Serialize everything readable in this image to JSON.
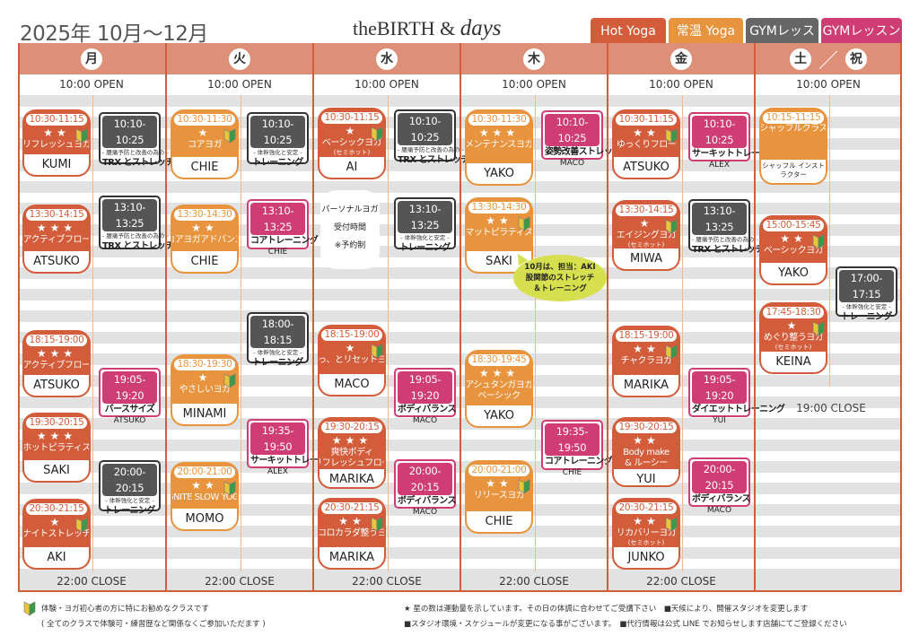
{
  "header": {
    "title": "2025年 10月〜12月",
    "logo_main": "theBIRTH",
    "logo_amp": "&",
    "logo_days": "days",
    "legend": [
      {
        "label": "Hot Yoga",
        "color": "#d35d3a"
      },
      {
        "label": "常温 Yoga",
        "color": "#e8943e"
      },
      {
        "label": "GYMレッスン",
        "color": "#666666"
      },
      {
        "label": "GYMレッスン",
        "color": "#d03c74"
      }
    ]
  },
  "colors": {
    "hot": "#d35d3a",
    "temp": "#e8943e",
    "gym_gray": "#555555",
    "gym_pink": "#d03c74",
    "border": "#d35d3a",
    "day_header": "#dd8f77"
  },
  "days": [
    {
      "label": "月",
      "open": "10:00 OPEN",
      "close": "22:00 CLOSE",
      "yoga": [
        {
          "time": "10:30-11:15",
          "stars": 2,
          "beginner": true,
          "name": "リフレッシュヨガ",
          "instructor": "KUMI",
          "type": "hot"
        },
        {
          "time": "13:30-14:15",
          "stars": 3,
          "name": "アクティブフロー",
          "instructor": "ATSUKO",
          "type": "hot"
        },
        {
          "time": "18:15-19:00",
          "stars": 3,
          "name": "アクティブフロー",
          "instructor": "ATSUKO",
          "type": "hot"
        },
        {
          "time": "19:30-20:15",
          "stars": 3,
          "name": "ホットピラティス",
          "instructor": "SAKI",
          "type": "hot"
        },
        {
          "time": "20:30-21:15",
          "stars": 1,
          "beginner": true,
          "name": "ナイトストレッチ",
          "instructor": "AKI",
          "type": "hot"
        }
      ],
      "gym": [
        {
          "time": "10:10-10:25",
          "color": "gray",
          "caption": "- 腰痛予防と改善の為の -",
          "title": "TRX とストレッチ"
        },
        {
          "time": "13:10-13:25",
          "color": "gray",
          "caption": "- 腰痛予防と改善の為の -",
          "title": "TRX とストレッチ"
        },
        {
          "time": "19:05-19:20",
          "color": "pink",
          "title": "バースサイズ",
          "instructor": "ATSUKO"
        },
        {
          "time": "20:00-20:15",
          "color": "gray",
          "caption": "- 体幹強化と安定 -",
          "title": "トレーニング"
        }
      ]
    },
    {
      "label": "火",
      "open": "10:00 OPEN",
      "close": "22:00 CLOSE",
      "yoga": [
        {
          "time": "10:30-11:30",
          "stars": 1,
          "beginner": true,
          "name": "コアヨガ",
          "instructor": "CHIE",
          "type": "temp"
        },
        {
          "time": "13:30-14:30",
          "stars": 2,
          "name": "コアヨガアドバンス",
          "instructor": "CHIE",
          "type": "temp"
        },
        {
          "time": "18:30-19:30",
          "stars": 1,
          "beginner": true,
          "name": "やさしいヨガ",
          "instructor": "MINAMI",
          "type": "temp"
        },
        {
          "time": "20:00-21:00",
          "stars": 2,
          "beginner": true,
          "name": "IGNITE SLOW YOGA",
          "instructor": "MOMO",
          "type": "temp"
        }
      ],
      "gym": [
        {
          "time": "10:10-10:25",
          "color": "gray",
          "caption": "- 体幹強化と安定 -",
          "title": "トレーニング"
        },
        {
          "time": "13:10-13:25",
          "color": "pink",
          "title": "コアトレーニング",
          "instructor": "CHIE"
        },
        {
          "time": "18:00-18:15",
          "color": "gray",
          "caption": "- 体幹強化と安定 -",
          "title": "トレーニング"
        },
        {
          "time": "19:35-19:50",
          "color": "pink",
          "title": "サーキットトレーニング",
          "instructor": "ALEX"
        }
      ]
    },
    {
      "label": "水",
      "open": "10:00 OPEN",
      "close": "22:00 CLOSE",
      "yoga": [
        {
          "time": "10:30-11:15",
          "stars": 1,
          "beginner": true,
          "name": "ベーシックヨガ",
          "sub": "(セミホット)",
          "instructor": "AI",
          "type": "hot"
        },
        {
          "time": "18:15-19:00",
          "stars": 1,
          "beginner": true,
          "name": "ほっ、とリセットヨガ",
          "instructor": "MACO",
          "type": "hot"
        },
        {
          "time": "19:30-20:15",
          "stars": 3,
          "name": "爽快ボディ",
          "name2": "リフレッシュフロー",
          "instructor": "MARIKA",
          "type": "hot"
        },
        {
          "time": "20:30-21:15",
          "stars": 2,
          "beginner": true,
          "name": "ココロカラダ整うヨガ",
          "instructor": "MARIKA",
          "type": "hot"
        }
      ],
      "personal": [
        "パーソナルヨガ",
        "受付時間",
        "※予約制"
      ],
      "gym": [
        {
          "time": "10:10-10:25",
          "color": "gray",
          "caption": "- 腰痛予防と改善の為の -",
          "title": "TRX とストレッチ"
        },
        {
          "time": "13:10-13:25",
          "color": "gray",
          "caption": "- 体幹強化と安定 -",
          "title": "トレーニング"
        },
        {
          "time": "19:05-19:20",
          "color": "pink",
          "title": "ボディバランス",
          "instructor": "MACO"
        },
        {
          "time": "20:00-20:15",
          "color": "pink",
          "title": "ボディバランス",
          "instructor": "MACO"
        }
      ]
    },
    {
      "label": "木",
      "open": "10:00 OPEN",
      "close": "22:00 CLOSE",
      "yoga": [
        {
          "time": "10:30-11:30",
          "stars": 3,
          "name": "メンテナンスヨガ",
          "instructor": "YAKO",
          "type": "temp"
        },
        {
          "time": "13:30-14:30",
          "stars": 2,
          "beginner": true,
          "name": "マットピラティス",
          "instructor": "SAKI",
          "type": "temp"
        },
        {
          "time": "18:30-19:45",
          "stars": 3,
          "name": "アシュタンガヨガ",
          "name2": "ベーシック",
          "instructor": "YAKO",
          "type": "temp"
        },
        {
          "time": "20:00-21:00",
          "stars": 2,
          "beginner": true,
          "name": "リリースヨガ",
          "instructor": "CHIE",
          "type": "temp"
        }
      ],
      "note": [
        "10月は、担当：AKI",
        "股関節のストレッチ",
        "＆トレーニング"
      ],
      "gym": [
        {
          "time": "10:10-10:25",
          "color": "pink",
          "title": "姿勢改善ストレッチ",
          "instructor": "MACO"
        },
        {
          "time": "19:35-19:50",
          "color": "pink",
          "title": "コアトレーニング",
          "instructor": "CHIE"
        }
      ]
    },
    {
      "label": "金",
      "open": "10:00 OPEN",
      "close": "22:00 CLOSE",
      "yoga": [
        {
          "time": "10:30-11:15",
          "stars": 2,
          "beginner": true,
          "name": "ゆっくりフロー",
          "instructor": "ATSUKO",
          "type": "hot"
        },
        {
          "time": "13:30-14:15",
          "stars": 1,
          "beginner": true,
          "name": "エイジングヨガ",
          "sub": "(セミホット)",
          "instructor": "MIWA",
          "type": "hot"
        },
        {
          "time": "18:15-19:00",
          "stars": 2,
          "beginner": true,
          "name": "チャクラヨガ",
          "instructor": "MARIKA",
          "type": "hot"
        },
        {
          "time": "19:30-20:15",
          "stars": 2,
          "name": "Body make",
          "name2": "& ルーシー",
          "instructor": "YUI",
          "type": "hot"
        },
        {
          "time": "20:30-21:15",
          "stars": 2,
          "beginner": true,
          "name": "リカバリーヨガ",
          "sub": "(セミホット)",
          "instructor": "JUNKO",
          "type": "hot"
        }
      ],
      "gym": [
        {
          "time": "10:10-10:25",
          "color": "pink",
          "title": "サーキットトレーニング",
          "instructor": "ALEX"
        },
        {
          "time": "13:10-13:25",
          "color": "gray",
          "caption": "- 腰痛予防と改善の為の -",
          "title": "TRX とストレッチ"
        },
        {
          "time": "19:05-19:20",
          "color": "pink",
          "title": "ダイエットトレーニング",
          "instructor": "YUI"
        },
        {
          "time": "20:00-20:15",
          "color": "pink",
          "title": "ボディバランス",
          "instructor": "MACO"
        }
      ]
    },
    {
      "label": "土",
      "label2": "祝",
      "open": "10:00 OPEN",
      "close": "19:00 CLOSE",
      "yoga": [
        {
          "time": "10:15-11:15",
          "stars": 0,
          "name": "シャッフルクラス",
          "instructor": "シャッフル インストラクター",
          "type": "temp"
        },
        {
          "time": "15:00-15:45",
          "stars": 2,
          "beginner": true,
          "name": "ベーシックヨガ",
          "instructor": "YAKO",
          "type": "hot"
        },
        {
          "time": "17:45-18:30",
          "stars": 1,
          "beginner": true,
          "name": "めぐり整うヨガ",
          "sub": "(セミホット)",
          "instructor": "KEINA",
          "type": "hot"
        }
      ],
      "gym": [
        {
          "time": "17:00-17:15",
          "color": "gray",
          "caption": "- 体幹強化と安定 -",
          "title": "トレーニング"
        }
      ]
    }
  ],
  "footer": {
    "beginner_note": "体験・ヨガ初心者の方に特にお勧めなクラスです",
    "beginner_note2": "( 全てのクラスで体験可・練習歴など関係なくご参加いただます )",
    "star_note": "星の数は運動量を示しています。その日の体調に合わせてご受講下さい　■天候により、開催スタジオを変更します",
    "note2": "■スタジオ環境・スケジュールが変更になる事がございます。　■代行情報は公式 LINE でお知らせします店舗にてご登録ください"
  }
}
